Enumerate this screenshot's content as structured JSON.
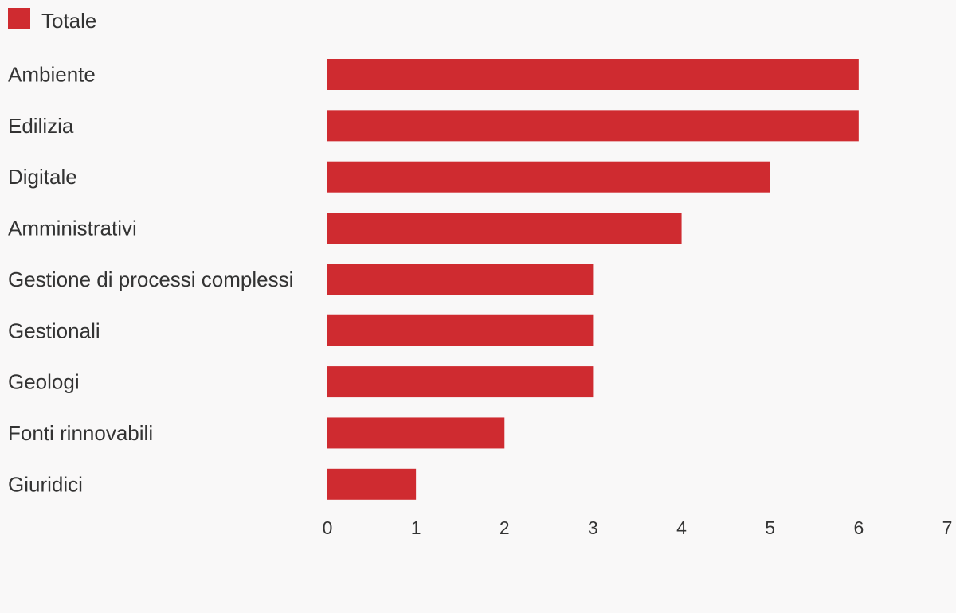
{
  "colors": {
    "background": "#f9f8f8",
    "bar": "#cf2b30",
    "text": "#333333"
  },
  "legend": {
    "label": "Totale"
  },
  "chart_data": {
    "type": "bar",
    "orientation": "horizontal",
    "categories": [
      "Ambiente",
      "Edilizia",
      "Digitale",
      "Amministrativi",
      "Gestione di processi complessi",
      "Gestionali",
      "Geologi",
      "Fonti rinnovabili",
      "Giuridici"
    ],
    "series": [
      {
        "name": "Totale",
        "color": "#cf2b30",
        "values": [
          6,
          6,
          5,
          4,
          3,
          3,
          3,
          2,
          1
        ]
      }
    ],
    "xlim": [
      0,
      7
    ],
    "x_ticks": [
      "0",
      "1",
      "2",
      "3",
      "4",
      "5",
      "6",
      "7"
    ],
    "grid": false,
    "legend_position": "top-left"
  }
}
